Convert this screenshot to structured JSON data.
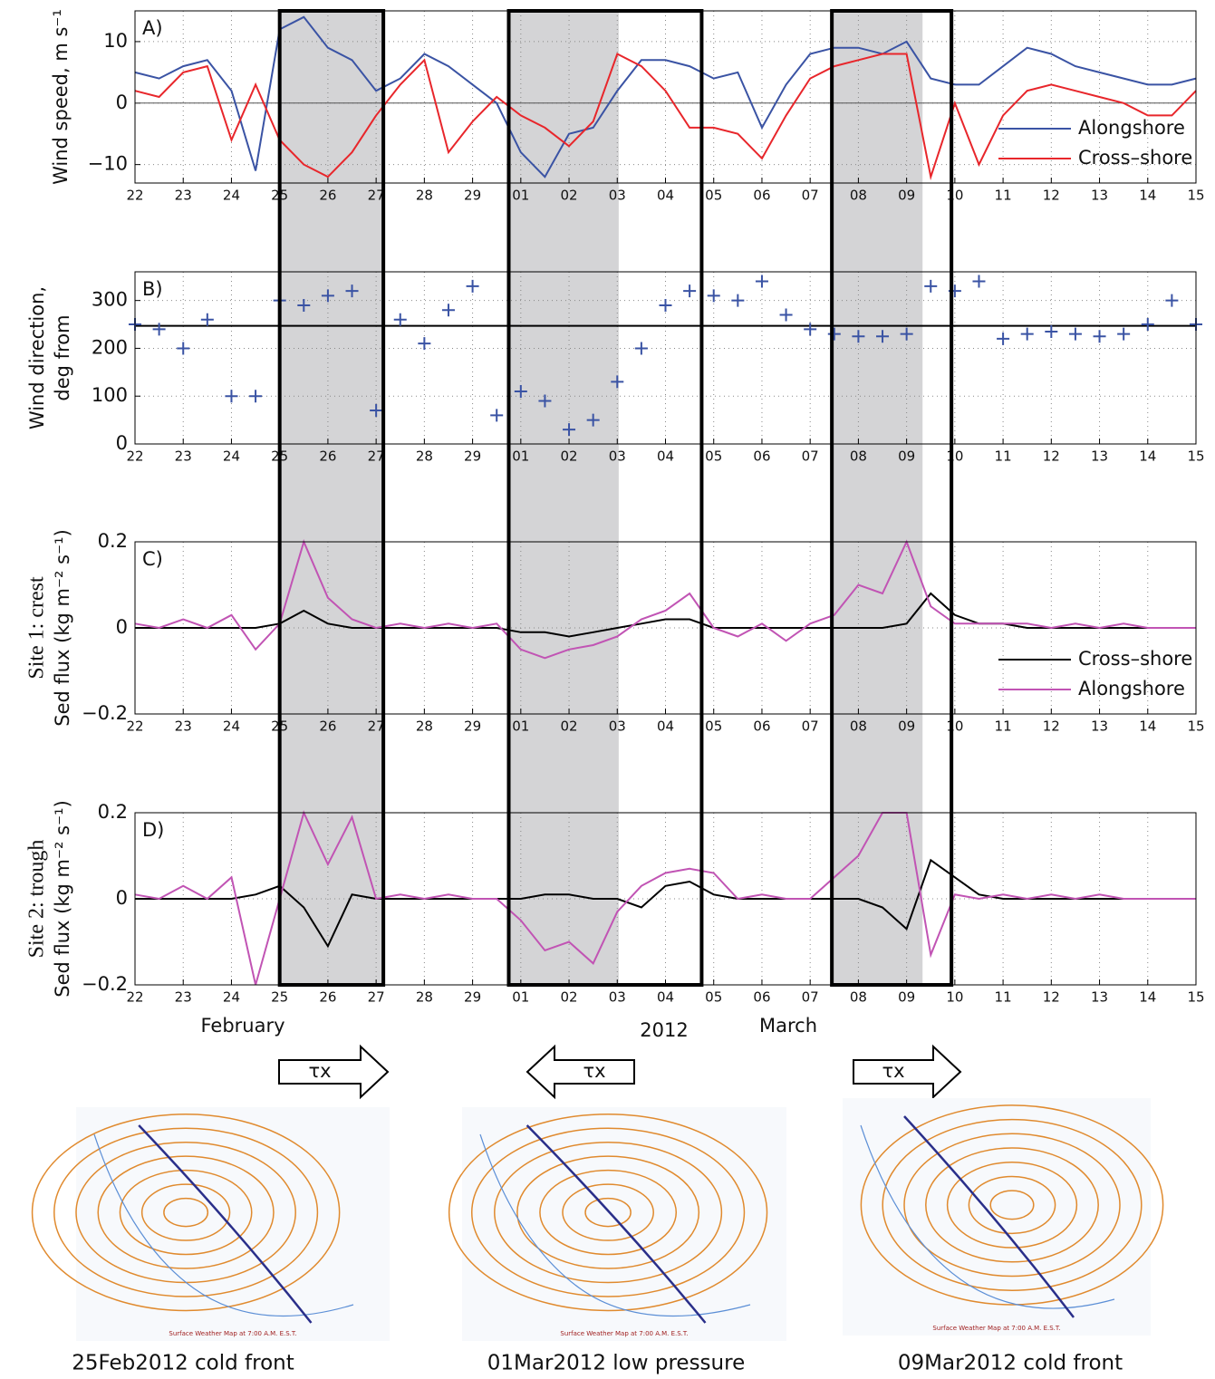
{
  "chart_data": [
    {
      "type": "line",
      "panel_label": "A)",
      "y_label": [
        "Wind speed, m s⁻¹"
      ],
      "x": [
        0,
        0.5,
        1,
        1.5,
        2,
        2.5,
        3,
        3.5,
        4,
        4.5,
        5,
        5.5,
        6,
        6.5,
        7,
        7.5,
        8,
        8.5,
        9,
        9.5,
        10,
        10.5,
        11,
        11.5,
        12,
        12.5,
        13,
        13.5,
        14,
        14.5,
        15,
        15.5,
        16,
        16.5,
        17,
        17.5,
        18,
        18.5,
        19,
        19.5,
        20,
        20.5,
        21,
        21.5,
        22
      ],
      "series": [
        {
          "name": "Alongshore",
          "color": "#3a53a4",
          "values": [
            5,
            4,
            6,
            7,
            2,
            -11,
            12,
            14,
            9,
            7,
            2,
            4,
            8,
            6,
            3,
            0,
            -8,
            -12,
            -5,
            -4,
            2,
            7,
            7,
            6,
            4,
            5,
            -4,
            3,
            8,
            9,
            9,
            8,
            10,
            4,
            3,
            3,
            6,
            9,
            8,
            6,
            5,
            4,
            3,
            3,
            4
          ]
        },
        {
          "name": "Cross–shore",
          "color": "#e8262b",
          "values": [
            2,
            1,
            5,
            6,
            -6,
            3,
            -6,
            -10,
            -12,
            -8,
            -2,
            3,
            7,
            -8,
            -3,
            1,
            -2,
            -4,
            -7,
            -3,
            8,
            6,
            2,
            -4,
            -4,
            -5,
            -9,
            -2,
            4,
            6,
            7,
            8,
            8,
            -12,
            0,
            -10,
            -2,
            2,
            3,
            2,
            1,
            0,
            -2,
            -2,
            2
          ]
        }
      ],
      "xlim": [
        0,
        22
      ],
      "xticks": [
        {
          "value": 0,
          "label": "22"
        },
        {
          "value": 1,
          "label": "23"
        },
        {
          "value": 2,
          "label": "24"
        },
        {
          "value": 3,
          "label": "25"
        },
        {
          "value": 4,
          "label": "26"
        },
        {
          "value": 5,
          "label": "27"
        },
        {
          "value": 6,
          "label": "28"
        },
        {
          "value": 7,
          "label": "29"
        },
        {
          "value": 8,
          "label": "01"
        },
        {
          "value": 9,
          "label": "02"
        },
        {
          "value": 10,
          "label": "03"
        },
        {
          "value": 11,
          "label": "04"
        },
        {
          "value": 12,
          "label": "05"
        },
        {
          "value": 13,
          "label": "06"
        },
        {
          "value": 14,
          "label": "07"
        },
        {
          "value": 15,
          "label": "08"
        },
        {
          "value": 16,
          "label": "09"
        },
        {
          "value": 17,
          "label": "10"
        },
        {
          "value": 18,
          "label": "11"
        },
        {
          "value": 19,
          "label": "12"
        },
        {
          "value": 20,
          "label": "13"
        },
        {
          "value": 21,
          "label": "14"
        },
        {
          "value": 22,
          "label": "15"
        }
      ],
      "ylim": [
        -13,
        15
      ],
      "yticks": [
        {
          "value": -10,
          "label": "−10"
        },
        0,
        10
      ],
      "reference_line": 0,
      "grid": true,
      "legend": "lower right"
    },
    {
      "type": "scatter",
      "panel_label": "B)",
      "y_label": [
        "Wind direction,",
        "deg from"
      ],
      "x": [
        0,
        0.5,
        1,
        1.5,
        2,
        2.5,
        3,
        3.5,
        4,
        4.5,
        5,
        5.5,
        6,
        6.5,
        7,
        7.5,
        8,
        8.5,
        9,
        9.5,
        10,
        10.5,
        11,
        11.5,
        12,
        12.5,
        13,
        13.5,
        14,
        14.5,
        15,
        15.5,
        16,
        16.5,
        17,
        17.5,
        18,
        18.5,
        19,
        19.5,
        20,
        20.5,
        21,
        21.5,
        22
      ],
      "color": "#3a53a4",
      "values": [
        250,
        240,
        200,
        260,
        100,
        100,
        300,
        290,
        310,
        320,
        70,
        260,
        210,
        280,
        330,
        60,
        110,
        90,
        30,
        50,
        130,
        200,
        290,
        320,
        310,
        300,
        340,
        270,
        240,
        230,
        225,
        225,
        230,
        330,
        320,
        340,
        220,
        230,
        235,
        230,
        225,
        230,
        250,
        300,
        250
      ],
      "xlim": [
        0,
        22
      ],
      "xticks": [
        {
          "value": 0,
          "label": "22"
        },
        {
          "value": 1,
          "label": "23"
        },
        {
          "value": 2,
          "label": "24"
        },
        {
          "value": 3,
          "label": "25"
        },
        {
          "value": 4,
          "label": "26"
        },
        {
          "value": 5,
          "label": "27"
        },
        {
          "value": 6,
          "label": "28"
        },
        {
          "value": 7,
          "label": "29"
        },
        {
          "value": 8,
          "label": "01"
        },
        {
          "value": 9,
          "label": "02"
        },
        {
          "value": 10,
          "label": "03"
        },
        {
          "value": 11,
          "label": "04"
        },
        {
          "value": 12,
          "label": "05"
        },
        {
          "value": 13,
          "label": "06"
        },
        {
          "value": 14,
          "label": "07"
        },
        {
          "value": 15,
          "label": "08"
        },
        {
          "value": 16,
          "label": "09"
        },
        {
          "value": 17,
          "label": "10"
        },
        {
          "value": 18,
          "label": "11"
        },
        {
          "value": 19,
          "label": "12"
        },
        {
          "value": 20,
          "label": "13"
        },
        {
          "value": 21,
          "label": "14"
        },
        {
          "value": 22,
          "label": "15"
        }
      ],
      "ylim": [
        0,
        360
      ],
      "yticks": [
        0,
        100,
        200,
        300
      ],
      "reference_line": 247,
      "grid": true
    },
    {
      "type": "line",
      "panel_label": "C)",
      "y_label": [
        "Site 1: crest",
        "Sed flux (kg m⁻² s⁻¹)"
      ],
      "x": [
        0,
        0.5,
        1,
        1.5,
        2,
        2.5,
        3,
        3.5,
        4,
        4.5,
        5,
        5.5,
        6,
        6.5,
        7,
        7.5,
        8,
        8.5,
        9,
        9.5,
        10,
        10.5,
        11,
        11.5,
        12,
        12.5,
        13,
        13.5,
        14,
        14.5,
        15,
        15.5,
        16,
        16.5,
        17,
        17.5,
        18,
        18.5,
        19,
        19.5,
        20,
        20.5,
        21,
        21.5,
        22
      ],
      "series": [
        {
          "name": "Cross–shore",
          "color": "#000000",
          "values": [
            0,
            0,
            0,
            0,
            0,
            0,
            0.01,
            0.04,
            0.01,
            0,
            0,
            0,
            0,
            0,
            0,
            0,
            -0.01,
            -0.01,
            -0.02,
            -0.01,
            0,
            0.01,
            0.02,
            0.02,
            0,
            0,
            0,
            0,
            0,
            0,
            0,
            0,
            0.01,
            0.08,
            0.03,
            0.01,
            0.01,
            0,
            0,
            0,
            0,
            0,
            0,
            0,
            0
          ]
        },
        {
          "name": "Alongshore",
          "color": "#c154b4",
          "values": [
            0.01,
            0,
            0.02,
            0,
            0.03,
            -0.05,
            0.01,
            0.2,
            0.07,
            0.02,
            0,
            0.01,
            0,
            0.01,
            0,
            0.01,
            -0.05,
            -0.07,
            -0.05,
            -0.04,
            -0.02,
            0.02,
            0.04,
            0.08,
            0,
            -0.02,
            0.01,
            -0.03,
            0.01,
            0.03,
            0.1,
            0.08,
            0.2,
            0.05,
            0.01,
            0.01,
            0.01,
            0.01,
            0,
            0.01,
            0,
            0.01,
            0,
            0,
            0
          ]
        }
      ],
      "xlim": [
        0,
        22
      ],
      "xticks": [
        {
          "value": 0,
          "label": "22"
        },
        {
          "value": 1,
          "label": "23"
        },
        {
          "value": 2,
          "label": "24"
        },
        {
          "value": 3,
          "label": "25"
        },
        {
          "value": 4,
          "label": "26"
        },
        {
          "value": 5,
          "label": "27"
        },
        {
          "value": 6,
          "label": "28"
        },
        {
          "value": 7,
          "label": "29"
        },
        {
          "value": 8,
          "label": "01"
        },
        {
          "value": 9,
          "label": "02"
        },
        {
          "value": 10,
          "label": "03"
        },
        {
          "value": 11,
          "label": "04"
        },
        {
          "value": 12,
          "label": "05"
        },
        {
          "value": 13,
          "label": "06"
        },
        {
          "value": 14,
          "label": "07"
        },
        {
          "value": 15,
          "label": "08"
        },
        {
          "value": 16,
          "label": "09"
        },
        {
          "value": 17,
          "label": "10"
        },
        {
          "value": 18,
          "label": "11"
        },
        {
          "value": 19,
          "label": "12"
        },
        {
          "value": 20,
          "label": "13"
        },
        {
          "value": 21,
          "label": "14"
        },
        {
          "value": 22,
          "label": "15"
        }
      ],
      "ylim": [
        -0.2,
        0.2
      ],
      "yticks": [
        {
          "value": -0.2,
          "label": "−0.2"
        },
        0,
        0.2
      ],
      "grid": true,
      "legend": "lower right"
    },
    {
      "type": "line",
      "panel_label": "D)",
      "y_label": [
        "Site 2: trough",
        "Sed flux (kg m⁻² s⁻¹)"
      ],
      "x": [
        0,
        0.5,
        1,
        1.5,
        2,
        2.5,
        3,
        3.5,
        4,
        4.5,
        5,
        5.5,
        6,
        6.5,
        7,
        7.5,
        8,
        8.5,
        9,
        9.5,
        10,
        10.5,
        11,
        11.5,
        12,
        12.5,
        13,
        13.5,
        14,
        14.5,
        15,
        15.5,
        16,
        16.5,
        17,
        17.5,
        18,
        18.5,
        19,
        19.5,
        20,
        20.5,
        21,
        21.5,
        22
      ],
      "series": [
        {
          "name": "Cross–shore",
          "color": "#000000",
          "values": [
            0,
            0,
            0,
            0,
            0,
            0.01,
            0.03,
            -0.02,
            -0.11,
            0.01,
            0,
            0,
            0,
            0,
            0,
            0,
            0,
            0.01,
            0.01,
            0,
            0,
            -0.02,
            0.03,
            0.04,
            0.01,
            0,
            0,
            0,
            0,
            0,
            0,
            -0.02,
            -0.07,
            0.09,
            0.05,
            0.01,
            0,
            0,
            0,
            0,
            0,
            0,
            0,
            0,
            0
          ]
        },
        {
          "name": "Alongshore",
          "color": "#c154b4",
          "values": [
            0.01,
            0,
            0.03,
            0,
            0.05,
            -0.2,
            0,
            0.2,
            0.08,
            0.19,
            0,
            0.01,
            0,
            0.01,
            0,
            0,
            -0.05,
            -0.12,
            -0.1,
            -0.15,
            -0.03,
            0.03,
            0.06,
            0.07,
            0.06,
            0,
            0.01,
            0,
            0,
            0.05,
            0.1,
            0.2,
            0.2,
            -0.13,
            0.01,
            0,
            0.01,
            0,
            0.01,
            0,
            0.01,
            0,
            0,
            0,
            0
          ]
        }
      ],
      "xlim": [
        0,
        22
      ],
      "xticks": [
        {
          "value": 0,
          "label": "22"
        },
        {
          "value": 1,
          "label": "23"
        },
        {
          "value": 2,
          "label": "24"
        },
        {
          "value": 3,
          "label": "25"
        },
        {
          "value": 4,
          "label": "26"
        },
        {
          "value": 5,
          "label": "27"
        },
        {
          "value": 6,
          "label": "28"
        },
        {
          "value": 7,
          "label": "29"
        },
        {
          "value": 8,
          "label": "01"
        },
        {
          "value": 9,
          "label": "02"
        },
        {
          "value": 10,
          "label": "03"
        },
        {
          "value": 11,
          "label": "04"
        },
        {
          "value": 12,
          "label": "05"
        },
        {
          "value": 13,
          "label": "06"
        },
        {
          "value": 14,
          "label": "07"
        },
        {
          "value": 15,
          "label": "08"
        },
        {
          "value": 16,
          "label": "09"
        },
        {
          "value": 17,
          "label": "10"
        },
        {
          "value": 18,
          "label": "11"
        },
        {
          "value": 19,
          "label": "12"
        },
        {
          "value": 20,
          "label": "13"
        },
        {
          "value": 21,
          "label": "14"
        },
        {
          "value": 22,
          "label": "15"
        }
      ],
      "ylim": [
        -0.2,
        0.2
      ],
      "yticks": [
        {
          "value": -0.2,
          "label": "−0.2"
        },
        0,
        0.2
      ],
      "grid": true
    }
  ],
  "figure": {
    "months": [
      "February",
      "2012",
      "March"
    ],
    "highlights": [
      {
        "box": [
          3.0,
          5.15
        ],
        "shade": [
          3.0,
          5.15
        ]
      },
      {
        "box": [
          7.75,
          11.75
        ],
        "shade": [
          7.75,
          10.03
        ]
      },
      {
        "box": [
          14.45,
          16.93
        ],
        "shade": [
          14.45,
          16.33
        ]
      }
    ],
    "arrows": [
      {
        "label": "τx",
        "direction": "right"
      },
      {
        "label": "τx",
        "direction": "left"
      },
      {
        "label": "τx",
        "direction": "right"
      }
    ],
    "maps": [
      {
        "note": "Surface Weather Map at 7:00 A.M. E.S.T.",
        "caption": "25Feb2012 cold front"
      },
      {
        "note": "Surface Weather Map at 7:00 A.M. E.S.T.",
        "caption": "01Mar2012 low pressure"
      },
      {
        "note": "Surface Weather Map at 7:00 A.M. E.S.T.",
        "caption": "09Mar2012 cold front"
      }
    ]
  }
}
